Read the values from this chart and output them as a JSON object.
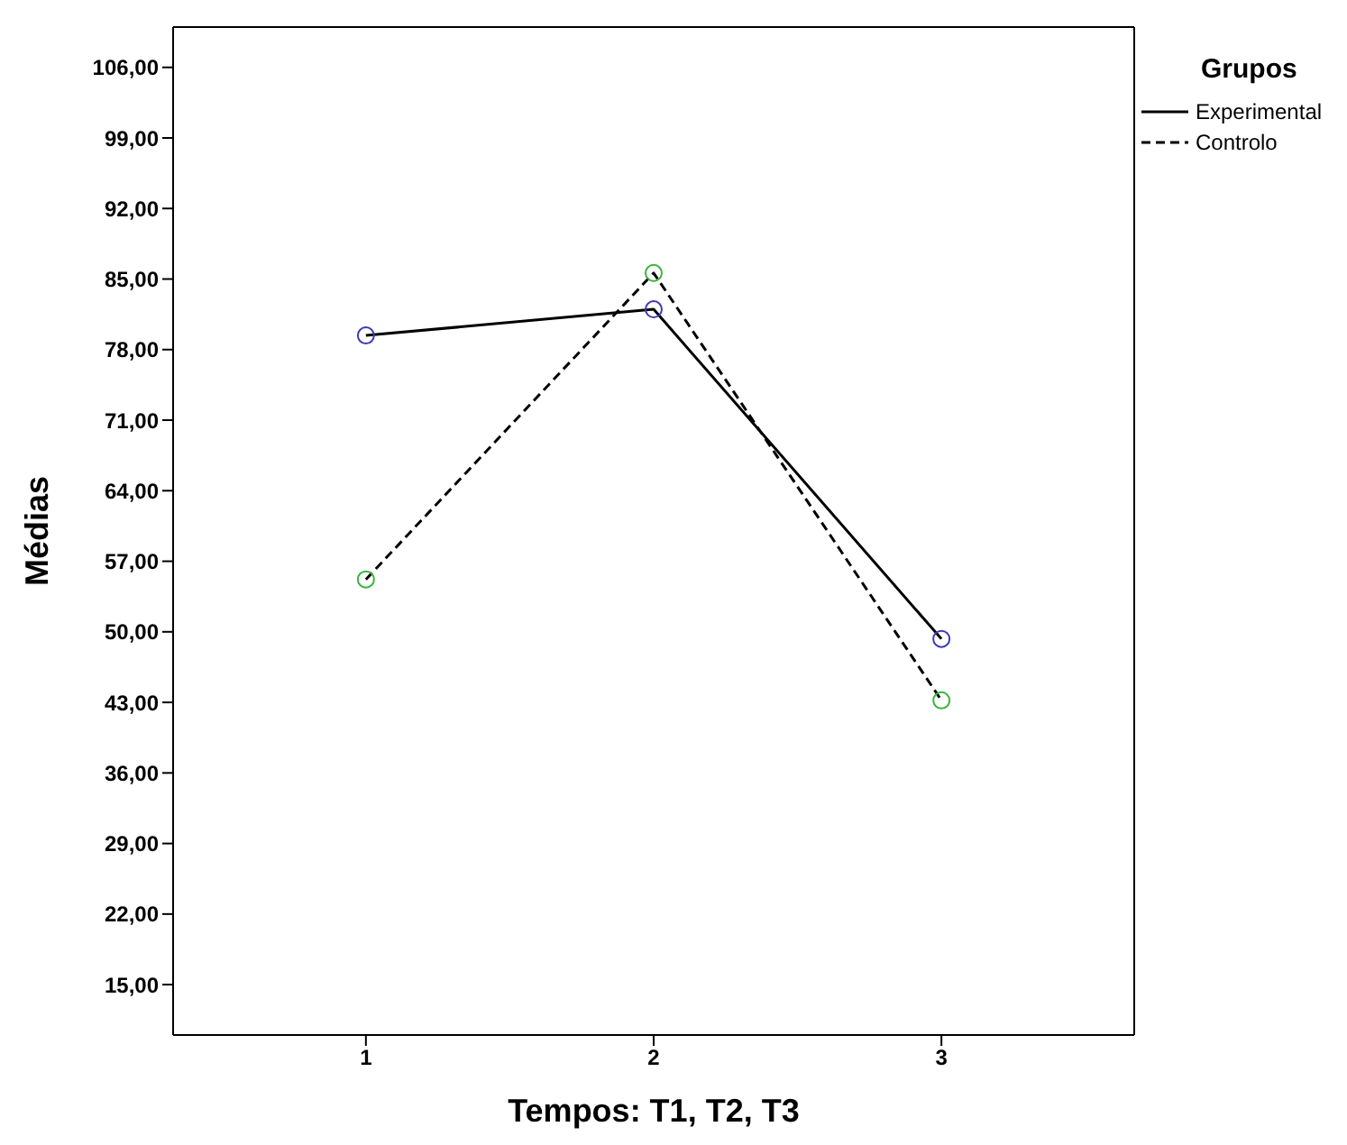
{
  "chart_data": {
    "type": "line",
    "xlabel": "Tempos: T1, T2, T3",
    "ylabel": "Médias",
    "legend_title": "Grupos",
    "legend": "top right",
    "marker": "circle",
    "x": [
      1,
      2,
      3
    ],
    "xlim": [
      0.33,
      3.67
    ],
    "xticks": [
      1,
      2,
      3
    ],
    "ylim": [
      10,
      110
    ],
    "yticks": [
      {
        "value": 15,
        "label": "15,00"
      },
      {
        "value": 22,
        "label": "22,00"
      },
      {
        "value": 29,
        "label": "29,00"
      },
      {
        "value": 36,
        "label": "36,00"
      },
      {
        "value": 43,
        "label": "43,00"
      },
      {
        "value": 50,
        "label": "50,00"
      },
      {
        "value": 57,
        "label": "57,00"
      },
      {
        "value": 64,
        "label": "64,00"
      },
      {
        "value": 71,
        "label": "71,00"
      },
      {
        "value": 78,
        "label": "78,00"
      },
      {
        "value": 85,
        "label": "85,00"
      },
      {
        "value": 92,
        "label": "92,00"
      },
      {
        "value": 99,
        "label": "99,00"
      },
      {
        "value": 106,
        "label": "106,00"
      }
    ],
    "series": [
      {
        "name": "Experimental",
        "color": "#000000",
        "colors": [
          "#3c3cb4",
          "#3c3cb4",
          "#3c3cb4"
        ],
        "line_style": "solid",
        "values": [
          79.4,
          82.0,
          49.3
        ]
      },
      {
        "name": "Controlo",
        "color": "#000000",
        "colors": [
          "#3cb43c",
          "#3cb43c",
          "#3cb43c"
        ],
        "line_style": "dashed",
        "values": [
          55.2,
          85.6,
          43.2
        ]
      }
    ]
  }
}
